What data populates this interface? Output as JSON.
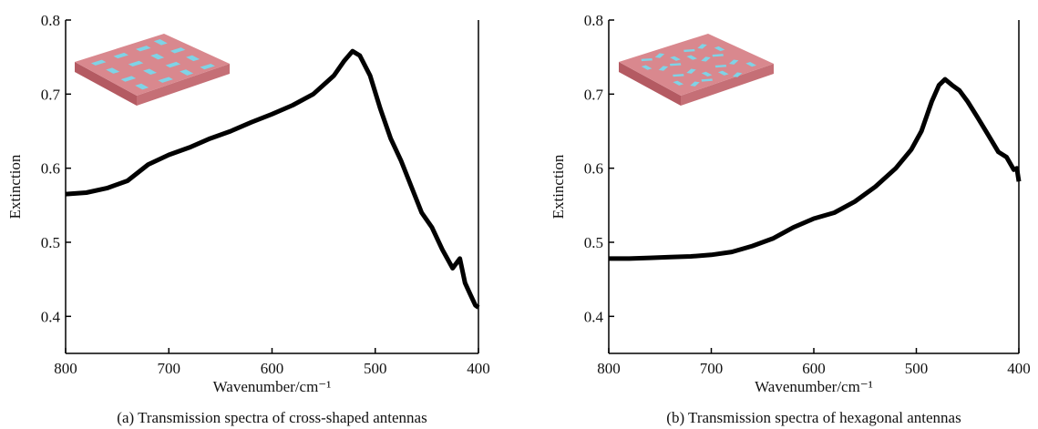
{
  "chart_data": [
    {
      "type": "line",
      "caption": "(a) Transmission spectra of cross-shaped antennas",
      "x_label": "Wavenumber/cm⁻¹",
      "y_label": "Extinction",
      "x": [
        800,
        780,
        760,
        740,
        720,
        700,
        680,
        660,
        640,
        620,
        600,
        580,
        560,
        540,
        530,
        522,
        515,
        505,
        495,
        485,
        475,
        465,
        455,
        445,
        435,
        425,
        418,
        413,
        408,
        403,
        400
      ],
      "values": [
        0.565,
        0.567,
        0.573,
        0.583,
        0.605,
        0.618,
        0.628,
        0.64,
        0.65,
        0.662,
        0.673,
        0.685,
        0.7,
        0.725,
        0.745,
        0.758,
        0.752,
        0.725,
        0.68,
        0.64,
        0.61,
        0.575,
        0.54,
        0.52,
        0.49,
        0.465,
        0.478,
        0.445,
        0.43,
        0.415,
        0.412
      ],
      "color": "#000000",
      "xlim": [
        800,
        400
      ],
      "xticks": [
        800,
        700,
        600,
        500,
        400
      ],
      "ylim": [
        0.35,
        0.8
      ],
      "yticks": [
        0.4,
        0.5,
        0.6,
        0.7,
        0.8
      ]
    },
    {
      "type": "line",
      "caption": "(b) Transmission spectra of hexagonal antennas",
      "x_label": "Wavenumber/cm⁻¹",
      "y_label": "Extinction",
      "x": [
        800,
        780,
        760,
        740,
        720,
        700,
        680,
        660,
        640,
        620,
        600,
        580,
        560,
        540,
        520,
        505,
        495,
        485,
        478,
        472,
        465,
        458,
        450,
        440,
        430,
        420,
        412,
        405,
        402,
        400
      ],
      "values": [
        0.478,
        0.478,
        0.479,
        0.48,
        0.481,
        0.483,
        0.487,
        0.495,
        0.505,
        0.52,
        0.532,
        0.54,
        0.555,
        0.575,
        0.6,
        0.625,
        0.65,
        0.69,
        0.712,
        0.72,
        0.712,
        0.705,
        0.69,
        0.668,
        0.645,
        0.622,
        0.615,
        0.598,
        0.6,
        0.582
      ],
      "color": "#000000",
      "xlim": [
        800,
        400
      ],
      "xticks": [
        800,
        700,
        600,
        500,
        400
      ],
      "ylim": [
        0.35,
        0.8
      ],
      "yticks": [
        0.4,
        0.5,
        0.6,
        0.7,
        0.8
      ]
    }
  ]
}
